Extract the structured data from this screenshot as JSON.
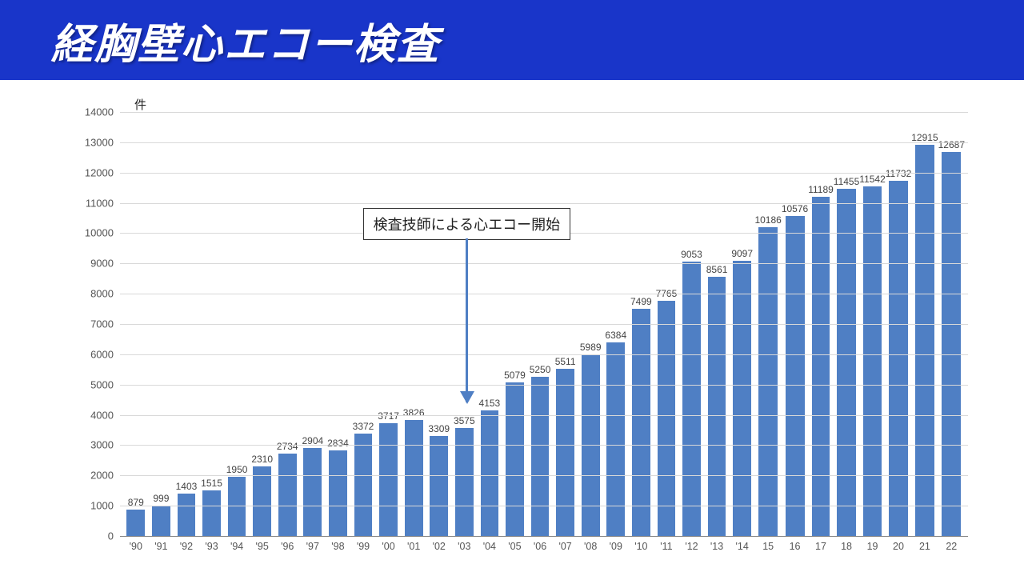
{
  "title": "経胸壁心エコー検査",
  "chart": {
    "type": "bar",
    "unit_label": "件",
    "ylim": [
      0,
      14000
    ],
    "ytick_step": 1000,
    "bar_color": "#4f7fc4",
    "grid_color": "#d9d9d9",
    "background_color": "#ffffff",
    "value_fontsize": 12,
    "axis_fontsize": 13,
    "categories": [
      "'90",
      "'91",
      "'92",
      "'93",
      "'94",
      "'95",
      "'96",
      "'97",
      "'98",
      "'99",
      "'00",
      "'01",
      "'02",
      "'03",
      "'04",
      "'05",
      "'06",
      "'07",
      "'08",
      "'09",
      "'10",
      "'11",
      "'12",
      "'13",
      "'14",
      "15",
      "16",
      "17",
      "18",
      "19",
      "20",
      "21",
      "22"
    ],
    "values": [
      879,
      999,
      1403,
      1515,
      1950,
      2310,
      2734,
      2904,
      2834,
      3372,
      3717,
      3826,
      3309,
      3575,
      4153,
      5079,
      5250,
      5511,
      5989,
      6384,
      7499,
      7765,
      9053,
      8561,
      9097,
      10186,
      10576,
      11189,
      11455,
      11542,
      11732,
      12915,
      12687
    ],
    "annotation": {
      "text": "検査技師による心エコー開始",
      "points_to_index": 13,
      "box_fontsize": 18,
      "arrow_color": "#4f7fc4",
      "border_color": "#333333"
    }
  }
}
